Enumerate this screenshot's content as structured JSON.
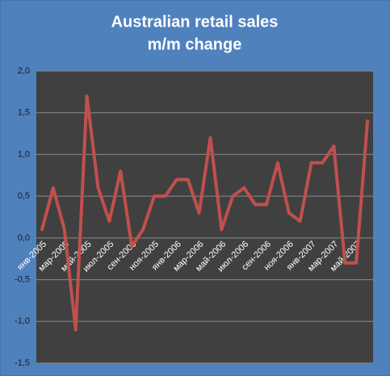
{
  "chart_data": {
    "type": "line",
    "title": "Australian retail sales",
    "subtitle": "m/m change",
    "categories": [
      "янв-2005",
      null,
      "мар-2005",
      null,
      "май-2005",
      null,
      "июл-2005",
      null,
      "сен-2005",
      null,
      "ноя-2005",
      null,
      "янв-2006",
      null,
      "мар-2006",
      null,
      "май-2006",
      null,
      "июл-2006",
      null,
      "сен-2006",
      null,
      "ноя-2006",
      null,
      "янв-2007",
      null,
      "мар-2007",
      null,
      "май-2007",
      null
    ],
    "series": [
      {
        "name": "m/m change",
        "color": "#c0504d",
        "values": [
          0.1,
          0.6,
          0.1,
          -1.1,
          1.7,
          0.6,
          0.2,
          0.8,
          -0.1,
          0.1,
          0.5,
          0.5,
          0.7,
          0.7,
          0.3,
          1.2,
          0.1,
          0.5,
          0.6,
          0.4,
          0.4,
          0.9,
          0.3,
          0.2,
          0.9,
          0.9,
          1.1,
          -0.3,
          -0.3,
          1.4
        ]
      }
    ],
    "ylim": [
      -1.5,
      2.0
    ],
    "yticks": [
      {
        "value": 2.0,
        "label": "2,0"
      },
      {
        "value": 1.5,
        "label": "1,5"
      },
      {
        "value": 1.0,
        "label": "1,0"
      },
      {
        "value": 0.5,
        "label": "0,5"
      },
      {
        "value": 0.0,
        "label": "0,0"
      },
      {
        "value": -0.5,
        "label": "-0,5"
      },
      {
        "value": -1.0,
        "label": "-1,0"
      },
      {
        "value": -1.5,
        "label": "-1,5"
      }
    ],
    "grid": true
  }
}
